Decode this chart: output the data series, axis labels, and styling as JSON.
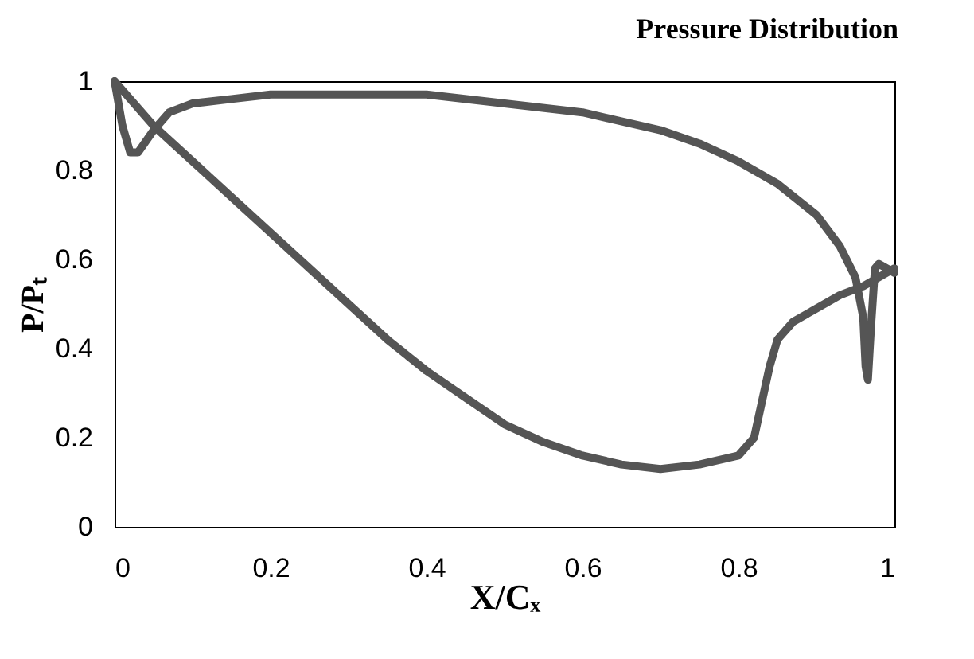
{
  "chart_data": {
    "type": "line",
    "title": "Pressure Distribution",
    "xlabel": "X/Cₓ",
    "ylabel": "P/Pₜ",
    "xlim": [
      0,
      1
    ],
    "ylim": [
      0,
      1
    ],
    "xticks": [
      0,
      {
        "value": 0.2,
        "label": "0.2"
      },
      {
        "value": 0.4,
        "label": "0.4"
      },
      {
        "value": 0.6,
        "label": "0.6"
      },
      {
        "value": 0.8,
        "label": "0.8"
      },
      1
    ],
    "yticks": [
      0,
      {
        "value": 0.2,
        "label": "0.2"
      },
      {
        "value": 0.4,
        "label": "0.4"
      },
      {
        "value": 0.6,
        "label": "0.6"
      },
      {
        "value": 0.8,
        "label": "0.8"
      },
      1
    ],
    "grid": false,
    "legend": false,
    "marker": "none",
    "line_style": "solid",
    "series": [
      {
        "color": "#555555",
        "x": [
          0,
          0.05,
          0.1,
          0.15,
          0.2,
          0.25,
          0.3,
          0.35,
          0.4,
          0.45,
          0.5,
          0.55,
          0.6,
          0.65,
          0.7,
          0.75,
          0.8,
          0.82,
          0.84,
          0.85,
          0.87,
          0.9,
          0.93,
          0.96,
          0.98,
          1
        ],
        "values": [
          1,
          0.9,
          0.82,
          0.74,
          0.66,
          0.58,
          0.5,
          0.42,
          0.35,
          0.29,
          0.23,
          0.19,
          0.16,
          0.14,
          0.13,
          0.14,
          0.16,
          0.2,
          0.36,
          0.42,
          0.46,
          0.49,
          0.52,
          0.54,
          0.56,
          0.58
        ]
      },
      {
        "color": "#555555",
        "x": [
          0,
          0.01,
          0.02,
          0.03,
          0.05,
          0.07,
          0.1,
          0.15,
          0.2,
          0.3,
          0.4,
          0.5,
          0.6,
          0.7,
          0.75,
          0.8,
          0.85,
          0.9,
          0.93,
          0.95,
          0.96,
          0.963,
          0.966,
          0.97,
          0.975,
          0.98,
          0.99,
          1
        ],
        "values": [
          1,
          0.9,
          0.84,
          0.84,
          0.89,
          0.93,
          0.95,
          0.96,
          0.97,
          0.97,
          0.97,
          0.95,
          0.93,
          0.89,
          0.86,
          0.82,
          0.77,
          0.7,
          0.63,
          0.56,
          0.47,
          0.36,
          0.33,
          0.45,
          0.58,
          0.59,
          0.58,
          0.57
        ]
      }
    ]
  }
}
